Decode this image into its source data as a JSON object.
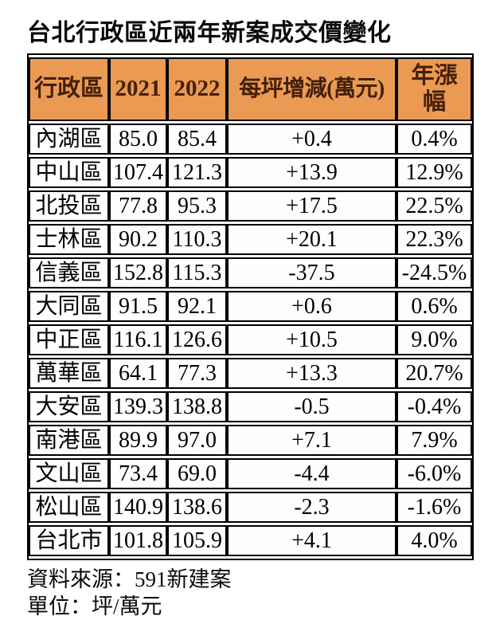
{
  "page": {
    "title": "台北行政區近兩年新案成交價變化",
    "footer": {
      "source": "資料來源：591新建案",
      "unit": "單位：坪/萬元"
    }
  },
  "table": {
    "headers": [
      "行政區",
      "2021",
      "2022",
      "每坪增減(萬元)",
      "年漲幅"
    ],
    "rows": [
      [
        "內湖區",
        "85.0",
        "85.4",
        "+0.4",
        "0.4%"
      ],
      [
        "中山區",
        "107.4",
        "121.3",
        "+13.9",
        "12.9%"
      ],
      [
        "北投區",
        "77.8",
        "95.3",
        "+17.5",
        "22.5%"
      ],
      [
        "士林區",
        "90.2",
        "110.3",
        "+20.1",
        "22.3%"
      ],
      [
        "信義區",
        "152.8",
        "115.3",
        "-37.5",
        "-24.5%"
      ],
      [
        "大同區",
        "91.5",
        "92.1",
        "+0.6",
        "0.6%"
      ],
      [
        "中正區",
        "116.1",
        "126.6",
        "+10.5",
        "9.0%"
      ],
      [
        "萬華區",
        "64.1",
        "77.3",
        "+13.3",
        "20.7%"
      ],
      [
        "大安區",
        "139.3",
        "138.8",
        "-0.5",
        "-0.4%"
      ],
      [
        "南港區",
        "89.9",
        "97.0",
        "+7.1",
        "7.9%"
      ],
      [
        "文山區",
        "73.4",
        "69.0",
        "-4.4",
        "-6.0%"
      ],
      [
        "松山區",
        "140.9",
        "138.6",
        "-2.3",
        "-1.6%"
      ],
      [
        "台北市",
        "101.8",
        "105.9",
        "+4.1",
        "4.0%"
      ]
    ]
  },
  "chart_data": {
    "type": "table",
    "title": "台北行政區近兩年新案成交價變化",
    "columns": [
      "行政區",
      "2021",
      "2022",
      "每坪增減(萬元)",
      "年漲幅"
    ],
    "unit": "坪/萬元",
    "source": "591新建案",
    "rows": [
      {
        "district": "內湖區",
        "price_2021": 85.0,
        "price_2022": 85.4,
        "change_wan_per_ping": 0.4,
        "yoy_pct": 0.4
      },
      {
        "district": "中山區",
        "price_2021": 107.4,
        "price_2022": 121.3,
        "change_wan_per_ping": 13.9,
        "yoy_pct": 12.9
      },
      {
        "district": "北投區",
        "price_2021": 77.8,
        "price_2022": 95.3,
        "change_wan_per_ping": 17.5,
        "yoy_pct": 22.5
      },
      {
        "district": "士林區",
        "price_2021": 90.2,
        "price_2022": 110.3,
        "change_wan_per_ping": 20.1,
        "yoy_pct": 22.3
      },
      {
        "district": "信義區",
        "price_2021": 152.8,
        "price_2022": 115.3,
        "change_wan_per_ping": -37.5,
        "yoy_pct": -24.5
      },
      {
        "district": "大同區",
        "price_2021": 91.5,
        "price_2022": 92.1,
        "change_wan_per_ping": 0.6,
        "yoy_pct": 0.6
      },
      {
        "district": "中正區",
        "price_2021": 116.1,
        "price_2022": 126.6,
        "change_wan_per_ping": 10.5,
        "yoy_pct": 9.0
      },
      {
        "district": "萬華區",
        "price_2021": 64.1,
        "price_2022": 77.3,
        "change_wan_per_ping": 13.3,
        "yoy_pct": 20.7
      },
      {
        "district": "大安區",
        "price_2021": 139.3,
        "price_2022": 138.8,
        "change_wan_per_ping": -0.5,
        "yoy_pct": -0.4
      },
      {
        "district": "南港區",
        "price_2021": 89.9,
        "price_2022": 97.0,
        "change_wan_per_ping": 7.1,
        "yoy_pct": 7.9
      },
      {
        "district": "文山區",
        "price_2021": 73.4,
        "price_2022": 69.0,
        "change_wan_per_ping": -4.4,
        "yoy_pct": -6.0
      },
      {
        "district": "松山區",
        "price_2021": 140.9,
        "price_2022": 138.6,
        "change_wan_per_ping": -2.3,
        "yoy_pct": -1.6
      },
      {
        "district": "台北市",
        "price_2021": 101.8,
        "price_2022": 105.9,
        "change_wan_per_ping": 4.1,
        "yoy_pct": 4.0
      }
    ]
  },
  "colors": {
    "header_bg": "#EB9A54",
    "header_text": "#44200A",
    "border": "#000000",
    "text": "#000000",
    "background": "#FFFFFF"
  }
}
